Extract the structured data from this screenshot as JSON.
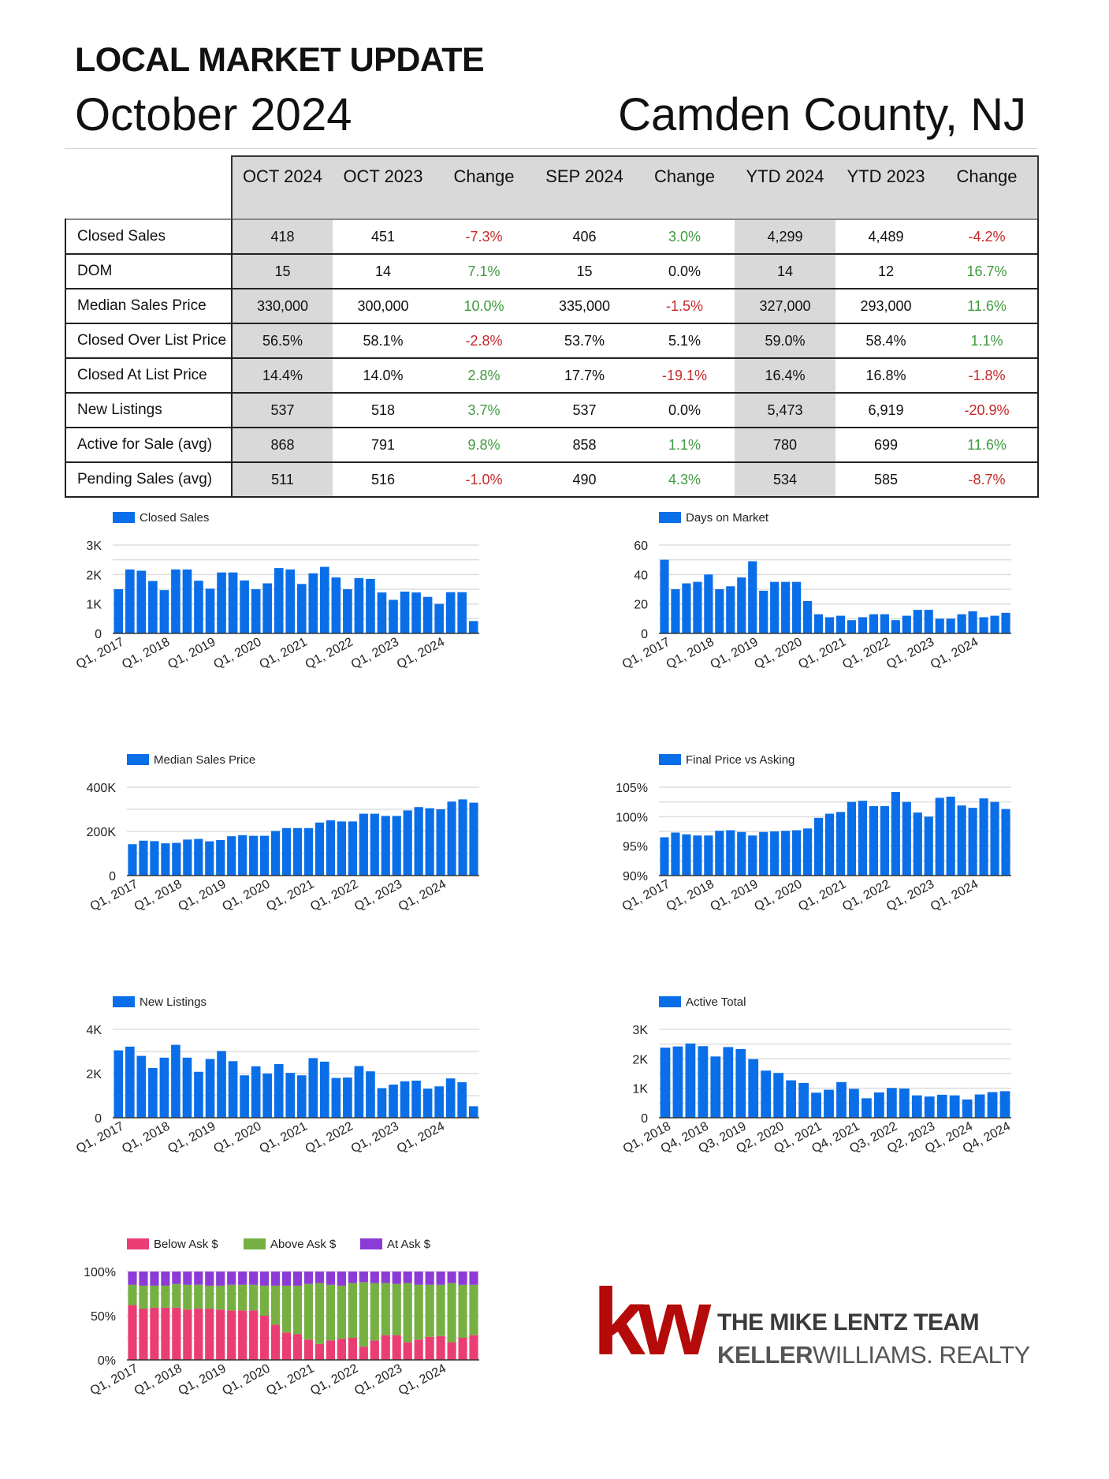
{
  "header": {
    "title": "LOCAL MARKET UPDATE",
    "month": "October 2024",
    "location": "Camden County, NJ"
  },
  "table": {
    "columns": [
      "OCT 2024",
      "OCT 2023",
      "Change",
      "SEP 2024",
      "Change",
      "YTD 2024",
      "YTD 2023",
      "Change"
    ],
    "rows": [
      {
        "label": "Closed Sales",
        "cells": [
          "418",
          "451",
          "-7.3%",
          "406",
          "3.0%",
          "4,299",
          "4,489",
          "-4.2%"
        ],
        "tones": [
          "",
          "",
          "neg",
          "",
          "pos",
          "",
          "",
          "neg"
        ]
      },
      {
        "label": "DOM",
        "cells": [
          "15",
          "14",
          "7.1%",
          "15",
          "0.0%",
          "14",
          "12",
          "16.7%"
        ],
        "tones": [
          "",
          "",
          "pos",
          "",
          "neu",
          "",
          "",
          "pos"
        ]
      },
      {
        "label": "Median Sales Price",
        "cells": [
          "330,000",
          "300,000",
          "10.0%",
          "335,000",
          "-1.5%",
          "327,000",
          "293,000",
          "11.6%"
        ],
        "tones": [
          "",
          "",
          "pos",
          "",
          "neg",
          "",
          "",
          "pos"
        ]
      },
      {
        "label": "Closed Over List Price",
        "cells": [
          "56.5%",
          "58.1%",
          "-2.8%",
          "53.7%",
          "5.1%",
          "59.0%",
          "58.4%",
          "1.1%"
        ],
        "tones": [
          "",
          "",
          "neg",
          "",
          "neu",
          "",
          "",
          "pos"
        ]
      },
      {
        "label": "Closed At List Price",
        "cells": [
          "14.4%",
          "14.0%",
          "2.8%",
          "17.7%",
          "-19.1%",
          "16.4%",
          "16.8%",
          "-1.8%"
        ],
        "tones": [
          "",
          "",
          "pos",
          "",
          "neg",
          "",
          "",
          "neg"
        ]
      },
      {
        "label": "New Listings",
        "cells": [
          "537",
          "518",
          "3.7%",
          "537",
          "0.0%",
          "5,473",
          "6,919",
          "-20.9%"
        ],
        "tones": [
          "",
          "",
          "pos",
          "",
          "neu",
          "",
          "",
          "neg"
        ]
      },
      {
        "label": "Active for Sale (avg)",
        "cells": [
          "868",
          "791",
          "9.8%",
          "858",
          "1.1%",
          "780",
          "699",
          "11.6%"
        ],
        "tones": [
          "",
          "",
          "pos",
          "",
          "pos",
          "",
          "",
          "pos"
        ]
      },
      {
        "label": "Pending Sales (avg)",
        "cells": [
          "511",
          "516",
          "-1.0%",
          "490",
          "4.3%",
          "534",
          "585",
          "-8.7%"
        ],
        "tones": [
          "",
          "",
          "neg",
          "",
          "pos",
          "",
          "",
          "neg"
        ]
      }
    ]
  },
  "colors": {
    "bar": "#0a6ee8",
    "grid": "#dddddd",
    "below_ask": "#ea3d74",
    "above_ask": "#76b043",
    "at_ask": "#8c3bd6",
    "logo_red": "#b40a0a"
  },
  "chart_data": [
    {
      "id": "closed-sales",
      "type": "bar",
      "legend": "Closed Sales",
      "ylim": [
        0,
        3000
      ],
      "yticks": [
        {
          "v": 0,
          "label": "0"
        },
        {
          "v": 1000,
          "label": "1K"
        },
        {
          "v": 2000,
          "label": "2K"
        },
        {
          "v": 3000,
          "label": "3K"
        }
      ],
      "xlabels": [
        {
          "i": 0,
          "label": "Q1, 2017"
        },
        {
          "i": 4,
          "label": "Q1, 2018"
        },
        {
          "i": 8,
          "label": "Q1, 2019"
        },
        {
          "i": 12,
          "label": "Q1, 2020"
        },
        {
          "i": 16,
          "label": "Q1, 2021"
        },
        {
          "i": 20,
          "label": "Q1, 2022"
        },
        {
          "i": 24,
          "label": "Q1, 2023"
        },
        {
          "i": 28,
          "label": "Q1, 2024"
        }
      ],
      "values": [
        1500,
        2170,
        2130,
        1780,
        1470,
        2170,
        2170,
        1790,
        1520,
        2070,
        2070,
        1800,
        1500,
        1700,
        2220,
        2170,
        1680,
        2040,
        2260,
        1900,
        1500,
        1880,
        1850,
        1390,
        1140,
        1420,
        1390,
        1240,
        1000,
        1400,
        1400,
        420
      ]
    },
    {
      "id": "days-on-market",
      "type": "bar",
      "legend": "Days on Market",
      "ylim": [
        0,
        60
      ],
      "yticks": [
        {
          "v": 0,
          "label": "0"
        },
        {
          "v": 20,
          "label": "20"
        },
        {
          "v": 40,
          "label": "40"
        },
        {
          "v": 60,
          "label": "60"
        }
      ],
      "xlabels": [
        {
          "i": 0,
          "label": "Q1, 2017"
        },
        {
          "i": 4,
          "label": "Q1, 2018"
        },
        {
          "i": 8,
          "label": "Q1, 2019"
        },
        {
          "i": 12,
          "label": "Q1, 2020"
        },
        {
          "i": 16,
          "label": "Q1, 2021"
        },
        {
          "i": 20,
          "label": "Q1, 2022"
        },
        {
          "i": 24,
          "label": "Q1, 2023"
        },
        {
          "i": 28,
          "label": "Q1, 2024"
        }
      ],
      "values": [
        50,
        30,
        34,
        35,
        40,
        30,
        32,
        38,
        49,
        29,
        35,
        35,
        35,
        22,
        13,
        11,
        12,
        9,
        11,
        13,
        13,
        9,
        12,
        16,
        16,
        10,
        10,
        13,
        15,
        11,
        12,
        14
      ]
    },
    {
      "id": "median-sales-price",
      "type": "bar",
      "legend": "Median Sales Price",
      "ylim": [
        0,
        400000
      ],
      "yticks": [
        {
          "v": 0,
          "label": "0"
        },
        {
          "v": 200000,
          "label": "200K"
        },
        {
          "v": 400000,
          "label": "400K"
        }
      ],
      "xlabels": [
        {
          "i": 0,
          "label": "Q1, 2017"
        },
        {
          "i": 4,
          "label": "Q1, 2018"
        },
        {
          "i": 8,
          "label": "Q1, 2019"
        },
        {
          "i": 12,
          "label": "Q1, 2020"
        },
        {
          "i": 16,
          "label": "Q1, 2021"
        },
        {
          "i": 20,
          "label": "Q1, 2022"
        },
        {
          "i": 24,
          "label": "Q1, 2023"
        },
        {
          "i": 28,
          "label": "Q1, 2024"
        }
      ],
      "values": [
        142000,
        158000,
        156000,
        146000,
        148000,
        163000,
        166000,
        155000,
        161000,
        178000,
        183000,
        180000,
        180000,
        202000,
        215000,
        215000,
        215000,
        240000,
        250000,
        245000,
        245000,
        280000,
        280000,
        270000,
        270000,
        295000,
        310000,
        305000,
        300000,
        335000,
        345000,
        330000
      ]
    },
    {
      "id": "final-price-vs-asking",
      "type": "bar",
      "legend": "Final Price vs Asking",
      "ylim": [
        90,
        105
      ],
      "yticks": [
        {
          "v": 90,
          "label": "90%"
        },
        {
          "v": 95,
          "label": "95%"
        },
        {
          "v": 100,
          "label": "100%"
        },
        {
          "v": 105,
          "label": "105%"
        }
      ],
      "xlabels": [
        {
          "i": 0,
          "label": "Q1, 2017"
        },
        {
          "i": 4,
          "label": "Q1, 2018"
        },
        {
          "i": 8,
          "label": "Q1, 2019"
        },
        {
          "i": 12,
          "label": "Q1, 2020"
        },
        {
          "i": 16,
          "label": "Q1, 2021"
        },
        {
          "i": 20,
          "label": "Q1, 2022"
        },
        {
          "i": 24,
          "label": "Q1, 2023"
        },
        {
          "i": 28,
          "label": "Q1, 2024"
        }
      ],
      "values": [
        96.5,
        97.3,
        97.0,
        96.8,
        96.8,
        97.6,
        97.7,
        97.4,
        96.8,
        97.4,
        97.5,
        97.6,
        97.7,
        98.0,
        99.8,
        100.5,
        100.8,
        102.5,
        102.7,
        101.8,
        101.8,
        104.2,
        102.5,
        100.7,
        100.0,
        103.2,
        103.4,
        101.9,
        101.5,
        103.1,
        102.5,
        101.3
      ]
    },
    {
      "id": "new-listings",
      "type": "bar",
      "legend": "New Listings",
      "ylim": [
        0,
        4000
      ],
      "yticks": [
        {
          "v": 0,
          "label": "0"
        },
        {
          "v": 2000,
          "label": "2K"
        },
        {
          "v": 4000,
          "label": "4K"
        }
      ],
      "xlabels": [
        {
          "i": 0,
          "label": "Q1, 2017"
        },
        {
          "i": 4,
          "label": "Q1, 2018"
        },
        {
          "i": 8,
          "label": "Q1, 2019"
        },
        {
          "i": 12,
          "label": "Q1, 2020"
        },
        {
          "i": 16,
          "label": "Q1, 2021"
        },
        {
          "i": 20,
          "label": "Q1, 2022"
        },
        {
          "i": 24,
          "label": "Q1, 2023"
        },
        {
          "i": 28,
          "label": "Q1, 2024"
        }
      ],
      "values": [
        3050,
        3220,
        2800,
        2250,
        2720,
        3300,
        2720,
        2080,
        2660,
        3020,
        2560,
        1920,
        2330,
        2000,
        2430,
        2030,
        1920,
        2700,
        2540,
        1800,
        1820,
        2340,
        2100,
        1340,
        1500,
        1650,
        1680,
        1320,
        1420,
        1780,
        1610,
        520
      ]
    },
    {
      "id": "active-total",
      "type": "bar",
      "legend": "Active Total",
      "ylim": [
        0,
        3000
      ],
      "yticks": [
        {
          "v": 0,
          "label": "0"
        },
        {
          "v": 1000,
          "label": "1K"
        },
        {
          "v": 2000,
          "label": "2K"
        },
        {
          "v": 3000,
          "label": "3K"
        }
      ],
      "xlabels": [
        {
          "i": 0,
          "label": "Q1, 2018"
        },
        {
          "i": 3,
          "label": "Q4, 2018"
        },
        {
          "i": 6,
          "label": "Q3, 2019"
        },
        {
          "i": 9,
          "label": "Q2, 2020"
        },
        {
          "i": 12,
          "label": "Q1, 2021"
        },
        {
          "i": 15,
          "label": "Q4, 2021"
        },
        {
          "i": 18,
          "label": "Q3, 2022"
        },
        {
          "i": 21,
          "label": "Q2, 2023"
        },
        {
          "i": 24,
          "label": "Q1, 2024"
        },
        {
          "i": 27,
          "label": "Q4, 2024"
        }
      ],
      "values": [
        2380,
        2420,
        2520,
        2430,
        2080,
        2400,
        2330,
        1990,
        1600,
        1520,
        1270,
        1180,
        850,
        950,
        1210,
        980,
        660,
        860,
        1010,
        990,
        760,
        720,
        780,
        760,
        620,
        790,
        870,
        900
      ]
    },
    {
      "id": "ask-breakdown",
      "type": "bar",
      "stacked": true,
      "percent": true,
      "ylim": [
        0,
        100
      ],
      "yticks": [
        {
          "v": 0,
          "label": "0%"
        },
        {
          "v": 50,
          "label": "50%"
        },
        {
          "v": 100,
          "label": "100%"
        }
      ],
      "xlabels": [
        {
          "i": 0,
          "label": "Q1, 2017"
        },
        {
          "i": 4,
          "label": "Q1, 2018"
        },
        {
          "i": 8,
          "label": "Q1, 2019"
        },
        {
          "i": 12,
          "label": "Q1, 2020"
        },
        {
          "i": 16,
          "label": "Q1, 2021"
        },
        {
          "i": 20,
          "label": "Q1, 2022"
        },
        {
          "i": 24,
          "label": "Q1, 2023"
        },
        {
          "i": 28,
          "label": "Q1, 2024"
        }
      ],
      "series": [
        {
          "name": "Below Ask $",
          "color_key": "below_ask",
          "values": [
            62,
            58,
            59,
            59,
            59,
            57,
            58,
            58,
            57,
            56,
            56,
            56,
            50,
            40,
            31,
            29,
            23,
            18,
            22,
            24,
            25,
            15,
            22,
            28,
            28,
            20,
            23,
            26,
            27,
            20,
            25,
            28
          ]
        },
        {
          "name": "Above Ask $",
          "color_key": "above_ask",
          "values": [
            23,
            26,
            25,
            25,
            27,
            28,
            27,
            26,
            27,
            29,
            29,
            29,
            34,
            44,
            53,
            55,
            63,
            69,
            63,
            60,
            62,
            73,
            65,
            59,
            58,
            67,
            62,
            59,
            58,
            67,
            60,
            57
          ]
        },
        {
          "name": "At Ask $",
          "color_key": "at_ask",
          "values": [
            15,
            16,
            16,
            16,
            14,
            15,
            15,
            16,
            16,
            15,
            15,
            15,
            16,
            16,
            16,
            16,
            14,
            13,
            15,
            16,
            13,
            12,
            13,
            13,
            14,
            13,
            15,
            15,
            15,
            13,
            15,
            15
          ]
        }
      ]
    }
  ],
  "logo": {
    "mark": "kw",
    "team": "THE MIKE LENTZ TEAM",
    "brand_bold": "KELLER",
    "brand_light": "WILLIAMS",
    "brand_dot": ".",
    "brand_realty": " REALTY"
  }
}
